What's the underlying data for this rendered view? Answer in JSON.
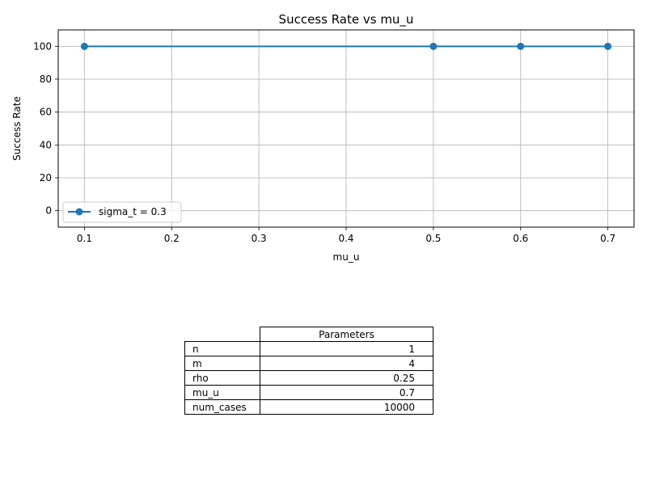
{
  "chart_data": {
    "type": "line",
    "title": "Success Rate vs mu_u",
    "xlabel": "mu_u",
    "ylabel": "Success Rate",
    "xlim": [
      0.07,
      0.73
    ],
    "ylim": [
      -10,
      110
    ],
    "xticks": [
      "0.1",
      "0.2",
      "0.3",
      "0.4",
      "0.5",
      "0.6",
      "0.7"
    ],
    "yticks": [
      "0",
      "20",
      "40",
      "60",
      "80",
      "100"
    ],
    "grid": true,
    "legend_position": "lower-left",
    "series": [
      {
        "name": "sigma_t = 0.3",
        "color": "#1f77b4",
        "x": [
          0.1,
          0.5,
          0.6,
          0.7
        ],
        "y": [
          100,
          100,
          100,
          100
        ]
      }
    ]
  },
  "table": {
    "column_header": "Parameters",
    "rows": [
      {
        "label": "n",
        "value": "1"
      },
      {
        "label": "m",
        "value": "4"
      },
      {
        "label": "rho",
        "value": "0.25"
      },
      {
        "label": "mu_u",
        "value": "0.7"
      },
      {
        "label": "num_cases",
        "value": "10000"
      }
    ]
  }
}
